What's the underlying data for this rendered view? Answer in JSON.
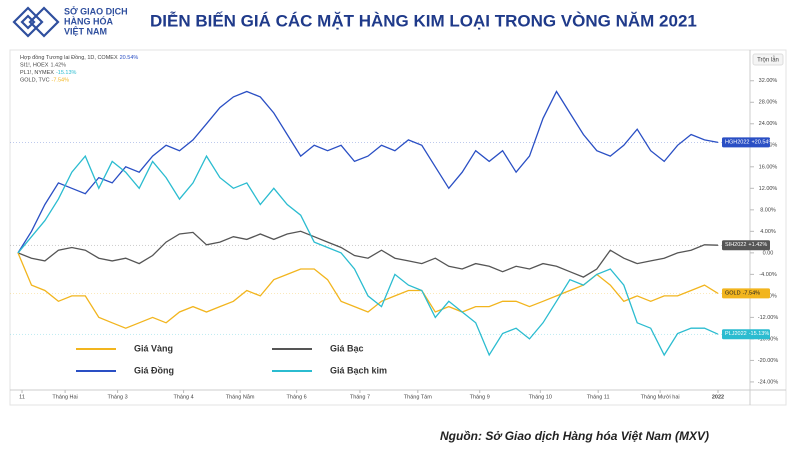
{
  "header": {
    "logo_text": [
      "SỞ GIAO DỊCH",
      "HÀNG HÓA",
      "VIỆT NAM"
    ],
    "title": "DIỄN BIẾN GIÁ CÁC MẶT HÀNG KIM LOẠI TRONG VÒNG NĂM 2021"
  },
  "source": "Nguồn: Sở Giao dịch Hàng hóa Việt Nam (MXV)",
  "chart_data": {
    "type": "line",
    "mode_button": "Trộn lẫn",
    "info_lines": [
      {
        "text": "Hợp đồng Tương lai Đồng, 1D, COMEX",
        "value": "20.54%",
        "color": "#2a4fc4"
      },
      {
        "text": "SI1!, HOEX",
        "value": "1.42%",
        "color": "#555555"
      },
      {
        "text": "PL1!, NYMEX",
        "value": "-15.13%",
        "color": "#2bbcd0"
      },
      {
        "text": "GOLD, TVC",
        "value": "-7.54%",
        "color": "#f2b51e"
      }
    ],
    "x": [
      0,
      1,
      2,
      3,
      4,
      5,
      6,
      7,
      8,
      9,
      10,
      11,
      12,
      13,
      14,
      15,
      16,
      17,
      18,
      19,
      20,
      21,
      22,
      23,
      24,
      25,
      26,
      27,
      28,
      29,
      30,
      31,
      32,
      33,
      34,
      35,
      36,
      37,
      38,
      39,
      40,
      41,
      42,
      43,
      44,
      45,
      46,
      47,
      48,
      49,
      50,
      51,
      52
    ],
    "xlim": [
      0,
      52
    ],
    "xticks": [
      {
        "value": 0.3,
        "label": "11"
      },
      {
        "value": 3.5,
        "label": "Tháng Hai"
      },
      {
        "value": 7.4,
        "label": "Tháng 3"
      },
      {
        "value": 12.3,
        "label": "Tháng 4"
      },
      {
        "value": 16.5,
        "label": "Tháng Năm"
      },
      {
        "value": 20.7,
        "label": "Tháng 6"
      },
      {
        "value": 25.4,
        "label": "Tháng 7"
      },
      {
        "value": 29.7,
        "label": "Tháng Tám"
      },
      {
        "value": 34.3,
        "label": "Tháng 9"
      },
      {
        "value": 38.8,
        "label": "Tháng 10"
      },
      {
        "value": 43.1,
        "label": "Tháng 11"
      },
      {
        "value": 47.7,
        "label": "Tháng Mười hai"
      },
      {
        "value": 52,
        "label": "2022"
      }
    ],
    "ylim": [
      -25.5,
      34
    ],
    "yticks": [
      {
        "value": 32,
        "label": "32.00%"
      },
      {
        "value": 28,
        "label": "28.00%"
      },
      {
        "value": 24,
        "label": "24.00%"
      },
      {
        "value": 20,
        "label": "20.00%"
      },
      {
        "value": 16,
        "label": "16.00%"
      },
      {
        "value": 12,
        "label": "12.00%"
      },
      {
        "value": 8,
        "label": "8.00%"
      },
      {
        "value": 4,
        "label": "4.00%"
      },
      {
        "value": 0,
        "label": "0.00"
      },
      {
        "value": -4,
        "label": "-4.00%"
      },
      {
        "value": -8,
        "label": "-8.00%"
      },
      {
        "value": -12,
        "label": "-12.00%"
      },
      {
        "value": -16,
        "label": "-16.00%"
      },
      {
        "value": -20,
        "label": "-20.00%"
      },
      {
        "value": -24,
        "label": "-24.00%"
      }
    ],
    "series": [
      {
        "name": "Giá Đồng",
        "color": "#2a4fc4",
        "symbol": "HGH2022",
        "value_label": "+20.54%",
        "values": [
          0,
          4,
          9,
          13,
          12,
          11,
          14,
          13,
          16,
          15,
          18,
          20,
          19,
          21,
          24,
          27,
          29,
          30,
          29,
          26,
          22,
          18,
          20,
          19,
          20,
          17,
          18,
          20,
          19,
          21,
          20,
          16,
          12,
          15,
          19,
          17,
          19,
          15,
          18,
          25,
          30,
          26,
          22,
          19,
          18,
          20,
          23,
          19,
          17,
          20,
          22,
          21,
          20.54
        ]
      },
      {
        "name": "Giá Bạc",
        "color": "#555555",
        "symbol": "SIH2022",
        "value_label": "+1.42%",
        "values": [
          0,
          -1,
          -1.5,
          0.5,
          1,
          0.5,
          -1,
          -1.5,
          -1,
          -2,
          -0.5,
          2,
          3.5,
          3.8,
          1.5,
          2,
          3,
          2.5,
          3.5,
          2.5,
          3.5,
          4,
          3,
          2,
          1,
          -0.5,
          -1,
          0.5,
          -1,
          -1.5,
          -2,
          -1,
          -2.5,
          -3,
          -2,
          -2.5,
          -3.5,
          -2.5,
          -3,
          -2,
          -2.5,
          -3.5,
          -4.5,
          -3,
          0.5,
          -1,
          -2,
          -1.5,
          -1,
          0,
          0.5,
          1.5,
          1.42
        ]
      },
      {
        "name": "Giá Vàng",
        "color": "#f2b51e",
        "symbol": "GOLD",
        "value_label": "-7.54%",
        "values": [
          0,
          -6,
          -7,
          -9,
          -8,
          -8,
          -12,
          -13,
          -14,
          -13,
          -12,
          -13,
          -11,
          -10,
          -11,
          -10,
          -9,
          -7,
          -8,
          -5,
          -4,
          -3,
          -3,
          -5,
          -9,
          -10,
          -11,
          -9,
          -8,
          -7,
          -7,
          -11,
          -10,
          -11,
          -10,
          -10,
          -9,
          -9,
          -10,
          -9,
          -8,
          -7,
          -6,
          -4,
          -6,
          -9,
          -8,
          -9,
          -8,
          -8,
          -7,
          -6,
          -7.54
        ]
      },
      {
        "name": "Giá Bạch kim",
        "color": "#2bbcd0",
        "symbol": "PLJ2022",
        "value_label": "-15.13%",
        "values": [
          0,
          3,
          6,
          10,
          15,
          18,
          12,
          17,
          15,
          12,
          17,
          14,
          10,
          13,
          18,
          14,
          12,
          13,
          9,
          12,
          9,
          7,
          2,
          1,
          0,
          -3,
          -8,
          -10,
          -4,
          -6,
          -7,
          -12,
          -9,
          -11,
          -13,
          -19,
          -15,
          -14,
          -16,
          -13,
          -9,
          -5,
          -6,
          -4,
          -3,
          -6,
          -13,
          -14,
          -19,
          -15,
          -14,
          -14,
          -15.13
        ]
      }
    ]
  }
}
